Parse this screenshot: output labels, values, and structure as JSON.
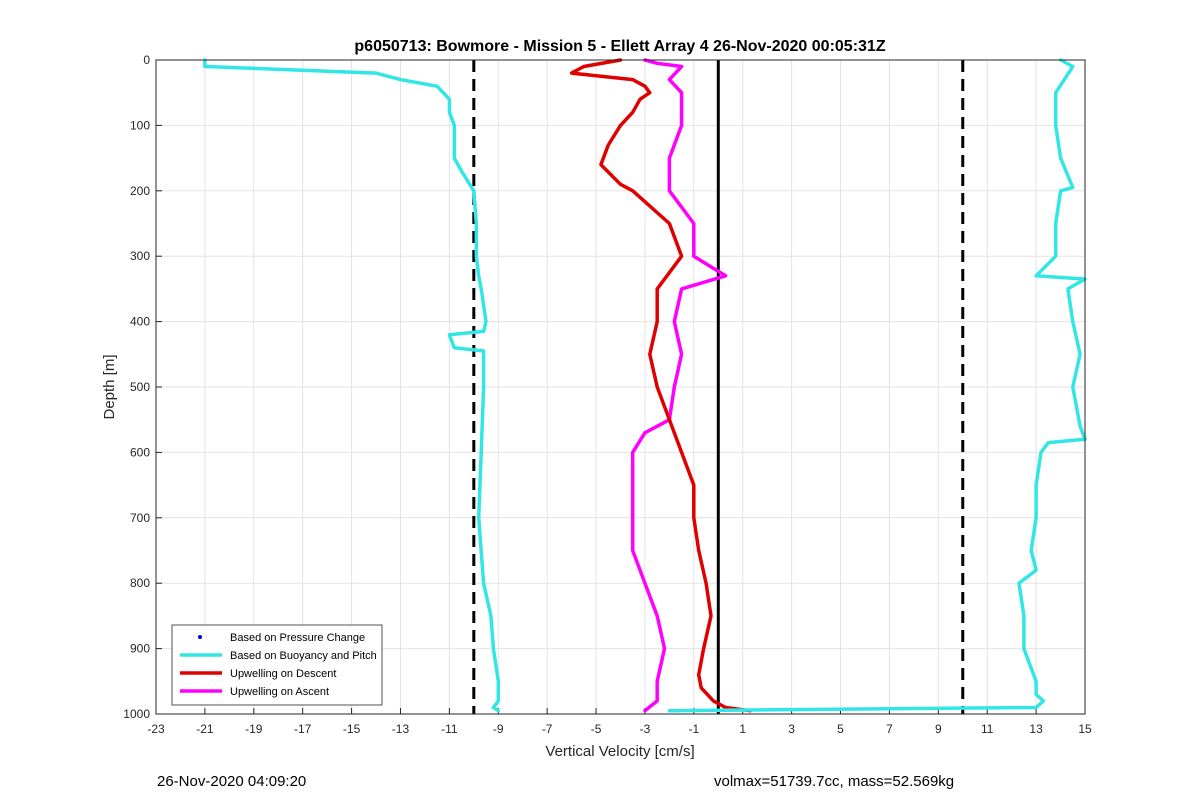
{
  "footer": {
    "timestamp": "26-Nov-2020 04:09:20",
    "vol_mass": "volmax=51739.7cc, mass=52.569kg"
  },
  "colors": {
    "pressure": "#0000cc",
    "buoyancy": "#33e6e6",
    "descent": "#e00000",
    "ascent": "#ff00ff",
    "grid": "#e3e3e3"
  },
  "chart_data": {
    "type": "line",
    "title": "p6050713: Bowmore - Mission 5 - Ellett Array 4 26-Nov-2020 00:05:31Z",
    "xlabel": "Vertical Velocity [cm/s]",
    "ylabel": "Depth [m]",
    "xlim": [
      -23,
      15
    ],
    "ylim": [
      0,
      1000
    ],
    "y_reversed": true,
    "grid": true,
    "legend_position": "bottom-left",
    "x_ticks": [
      "-23",
      "-21",
      "-19",
      "-17",
      "-15",
      "-13",
      "-11",
      "-9",
      "-7",
      "-5",
      "-3",
      "-1",
      "1",
      "3",
      "5",
      "7",
      "9",
      "11",
      "13",
      "15"
    ],
    "y_ticks": [
      "0",
      "100",
      "200",
      "300",
      "400",
      "500",
      "600",
      "700",
      "800",
      "900",
      "1000"
    ],
    "legend": [
      {
        "label": "Based on Pressure Change",
        "style": "dots",
        "color": "#0000cc"
      },
      {
        "label": "Based on Buoyancy and Pitch",
        "style": "line",
        "color": "#33e6e6"
      },
      {
        "label": "Upwelling on Descent",
        "style": "line",
        "color": "#e00000"
      },
      {
        "label": "Upwelling on Ascent",
        "style": "line",
        "color": "#ff00ff"
      }
    ],
    "reference_lines": [
      {
        "x": -10,
        "style": "dashed"
      },
      {
        "x": 10,
        "style": "dashed"
      },
      {
        "x": 0,
        "style": "solid"
      }
    ],
    "series": [
      {
        "name": "Based on Buoyancy and Pitch",
        "profile": "descent",
        "y": [
          0,
          10,
          20,
          30,
          40,
          60,
          80,
          100,
          150,
          170,
          200,
          250,
          300,
          330,
          350,
          400,
          415,
          420,
          440,
          445,
          500,
          600,
          700,
          800,
          850,
          900,
          950,
          980,
          990,
          995
        ],
        "x": [
          -21,
          -21,
          -14,
          -13,
          -11.5,
          -11,
          -11,
          -10.8,
          -10.8,
          -10.5,
          -10,
          -9.9,
          -9.9,
          -9.8,
          -9.7,
          -9.5,
          -9.6,
          -11,
          -10.8,
          -9.6,
          -9.6,
          -9.7,
          -9.8,
          -9.6,
          -9.3,
          -9.2,
          -9,
          -9,
          -9.2,
          -9
        ]
      },
      {
        "name": "Based on Buoyancy and Pitch",
        "profile": "ascent",
        "y": [
          995,
          990,
          980,
          970,
          950,
          900,
          850,
          800,
          780,
          750,
          700,
          650,
          600,
          585,
          580,
          560,
          500,
          450,
          400,
          350,
          335,
          330,
          300,
          250,
          200,
          195,
          150,
          100,
          50,
          10,
          0
        ],
        "x": [
          -2,
          13,
          13.3,
          13,
          13,
          12.5,
          12.5,
          12.3,
          13,
          12.8,
          13,
          13,
          13.2,
          13.5,
          15,
          14.8,
          14.5,
          14.8,
          14.5,
          14.3,
          15,
          13,
          13.8,
          13.8,
          14,
          14.5,
          14,
          13.8,
          13.8,
          14.5,
          14
        ]
      },
      {
        "name": "Upwelling on Descent",
        "y": [
          0,
          10,
          20,
          30,
          40,
          50,
          60,
          80,
          100,
          130,
          160,
          190,
          200,
          250,
          300,
          350,
          400,
          450,
          500,
          550,
          600,
          650,
          700,
          750,
          800,
          850,
          900,
          940,
          960,
          980,
          990,
          995
        ],
        "x": [
          -4,
          -5.5,
          -6,
          -3.5,
          -3,
          -2.8,
          -3.2,
          -3.5,
          -4,
          -4.5,
          -4.8,
          -4,
          -3.5,
          -2,
          -1.5,
          -2.5,
          -2.5,
          -2.8,
          -2.5,
          -2,
          -1.5,
          -1,
          -1,
          -0.8,
          -0.5,
          -0.3,
          -0.6,
          -0.8,
          -0.7,
          -0.2,
          0.3,
          1.3
        ]
      },
      {
        "name": "Upwelling on Ascent",
        "y": [
          0,
          5,
          10,
          30,
          50,
          80,
          100,
          150,
          200,
          250,
          300,
          330,
          350,
          400,
          450,
          500,
          550,
          570,
          600,
          650,
          700,
          750,
          800,
          850,
          900,
          950,
          980,
          995
        ],
        "x": [
          -3,
          -2.5,
          -1.5,
          -2,
          -1.5,
          -1.5,
          -1.5,
          -2,
          -2,
          -1,
          -1,
          0.3,
          -1.5,
          -1.8,
          -1.5,
          -1.8,
          -2,
          -3,
          -3.5,
          -3.5,
          -3.5,
          -3.5,
          -3,
          -2.5,
          -2.2,
          -2.5,
          -2.5,
          -3
        ]
      }
    ]
  }
}
